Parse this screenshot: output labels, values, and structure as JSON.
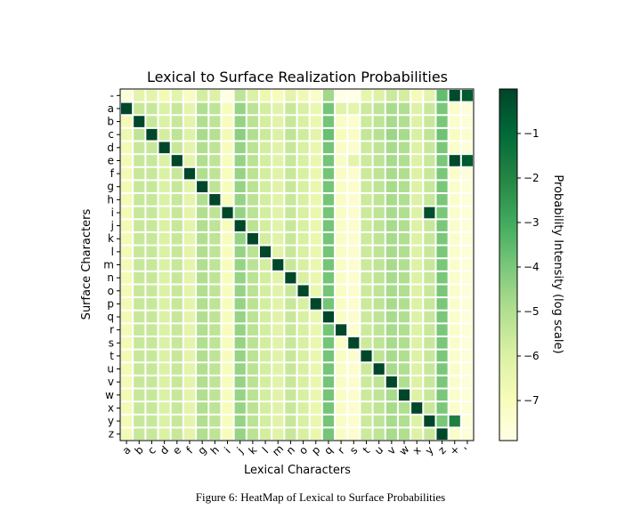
{
  "caption": "Figure 6: HeatMap of Lexical to Surface Probabilities",
  "chart_data": {
    "type": "heatmap",
    "title": "Lexical to Surface Realization Probabilities",
    "xlabel": "Lexical Characters",
    "ylabel": "Surface Characters",
    "colorbar_label": "Probability Intensity (log scale)",
    "colorbar_ticks": [
      -1,
      -2,
      -3,
      -4,
      -5,
      -6,
      -7
    ],
    "colorbar_range": [
      -7.9,
      0
    ],
    "x_categories": [
      "a",
      "b",
      "c",
      "d",
      "e",
      "f",
      "g",
      "h",
      "i",
      "j",
      "k",
      "l",
      "m",
      "n",
      "o",
      "p",
      "q",
      "r",
      "s",
      "t",
      "u",
      "v",
      "w",
      "x",
      "y",
      "z",
      "+",
      "'"
    ],
    "y_categories": [
      "-",
      "a",
      "b",
      "c",
      "d",
      "e",
      "f",
      "g",
      "h",
      "i",
      "j",
      "k",
      "l",
      "m",
      "n",
      "o",
      "p",
      "q",
      "r",
      "s",
      "t",
      "u",
      "v",
      "w",
      "x",
      "y",
      "z"
    ],
    "colors": {
      "low": "#ffffe5",
      "mid": "#78c679",
      "high": "#004529"
    },
    "column_baseline": [
      -6.8,
      -5.5,
      -5.5,
      -6.0,
      -5.5,
      -6.3,
      -5.0,
      -5.3,
      -7.0,
      -4.5,
      -5.2,
      -5.8,
      -6.2,
      -5.5,
      -5.9,
      -6.5,
      -3.9,
      -7.2,
      -7.4,
      -5.6,
      -5.3,
      -4.8,
      -5.0,
      -6.1,
      -5.5,
      -4.0,
      -7.3,
      -7.6
    ],
    "row_adjust": [
      -0.8,
      0,
      0,
      0.2,
      0,
      0,
      0,
      0,
      0,
      0,
      0,
      0,
      0,
      0,
      0,
      0,
      0,
      0,
      0,
      0,
      0,
      0,
      0,
      0,
      0,
      0,
      0
    ],
    "cells": [
      {
        "row": "-",
        "col": "+",
        "value": -0.15
      },
      {
        "row": "-",
        "col": "z",
        "value": -3.6
      },
      {
        "row": "-",
        "col": "'",
        "value": -0.6
      },
      {
        "row": "a",
        "col": "a",
        "value": -0.05
      },
      {
        "row": "a",
        "col": "r",
        "value": -6.2
      },
      {
        "row": "a",
        "col": "s",
        "value": -6.3
      },
      {
        "row": "b",
        "col": "b",
        "value": -0.05
      },
      {
        "row": "c",
        "col": "c",
        "value": -0.05
      },
      {
        "row": "d",
        "col": "d",
        "value": -0.05
      },
      {
        "row": "e",
        "col": "e",
        "value": -0.05
      },
      {
        "row": "e",
        "col": "+",
        "value": -0.1
      },
      {
        "row": "e",
        "col": "s",
        "value": -6.3
      },
      {
        "row": "e",
        "col": "'",
        "value": -0.6
      },
      {
        "row": "f",
        "col": "f",
        "value": -0.05
      },
      {
        "row": "g",
        "col": "g",
        "value": -0.05
      },
      {
        "row": "h",
        "col": "h",
        "value": -0.05
      },
      {
        "row": "i",
        "col": "i",
        "value": -0.05
      },
      {
        "row": "i",
        "col": "y",
        "value": -0.3
      },
      {
        "row": "j",
        "col": "j",
        "value": -0.05
      },
      {
        "row": "k",
        "col": "k",
        "value": -0.05
      },
      {
        "row": "l",
        "col": "l",
        "value": -0.05
      },
      {
        "row": "m",
        "col": "m",
        "value": -0.05
      },
      {
        "row": "n",
        "col": "n",
        "value": -0.05
      },
      {
        "row": "o",
        "col": "o",
        "value": -0.05
      },
      {
        "row": "p",
        "col": "p",
        "value": -0.05
      },
      {
        "row": "q",
        "col": "q",
        "value": -0.05
      },
      {
        "row": "r",
        "col": "r",
        "value": -0.05
      },
      {
        "row": "s",
        "col": "s",
        "value": -0.05
      },
      {
        "row": "t",
        "col": "t",
        "value": -0.05
      },
      {
        "row": "u",
        "col": "u",
        "value": -0.05
      },
      {
        "row": "v",
        "col": "v",
        "value": -0.05
      },
      {
        "row": "w",
        "col": "w",
        "value": -0.05
      },
      {
        "row": "x",
        "col": "x",
        "value": -0.05
      },
      {
        "row": "y",
        "col": "y",
        "value": -0.05
      },
      {
        "row": "y",
        "col": "+",
        "value": -1.8
      },
      {
        "row": "z",
        "col": "z",
        "value": -0.05
      }
    ]
  }
}
